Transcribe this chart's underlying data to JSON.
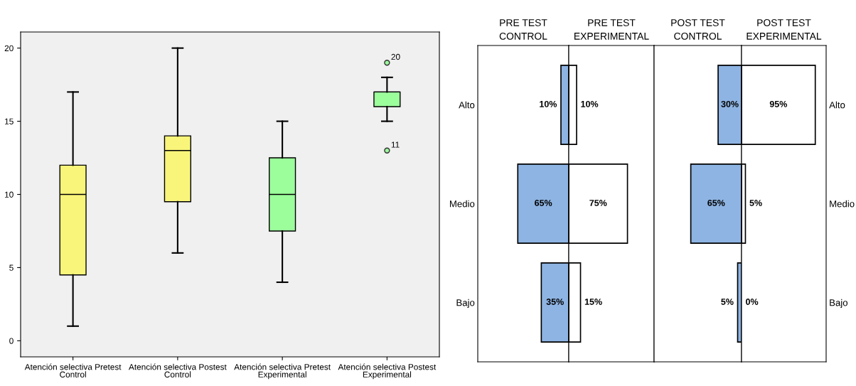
{
  "chart_data": [
    {
      "type": "box",
      "categories": [
        "Atención selectiva Pretest\nControl",
        "Atención selectiva Postest\nControl",
        "Atención selectiva Pretest\nExperimental",
        "Atención selectiva Postest\nExperimental"
      ],
      "colors": [
        "#f9f57a",
        "#f9f57a",
        "#9bfe9b",
        "#9bfe9b"
      ],
      "boxes": [
        {
          "low": 1,
          "q1": 4.5,
          "median": 10,
          "q3": 12,
          "high": 17
        },
        {
          "low": 6,
          "q1": 9.5,
          "median": 13,
          "q3": 14,
          "high": 20
        },
        {
          "low": 4,
          "q1": 7.5,
          "median": 10,
          "q3": 12.5,
          "high": 15
        },
        {
          "low": 15,
          "q1": 16,
          "median": 17,
          "q3": 17,
          "high": 18,
          "outliers": [
            19,
            13
          ]
        }
      ],
      "ylim": [
        -1.1,
        21.1
      ],
      "yticks": [
        0,
        5,
        10,
        15,
        20
      ],
      "annotations": [
        "20",
        "11"
      ]
    },
    {
      "type": "bar",
      "orientation": "horizontal",
      "title": "PRE TEST\nCONTROL",
      "categories": [
        "Alto",
        "Medio",
        "Bajo"
      ],
      "xlim": [
        116,
        0
      ],
      "tick_labels": "y",
      "color": "#8eb4e3",
      "values": [
        10,
        65,
        35
      ],
      "value_labels": [
        "10%",
        "65%",
        "35%"
      ]
    },
    {
      "type": "bar",
      "orientation": "horizontal",
      "title": "PRE TEST\nEXPERIMENTAL",
      "categories": [
        null,
        null,
        null
      ],
      "xlim": [
        0,
        109
      ],
      "color": "#ffffff",
      "values": [
        10,
        75,
        15
      ],
      "value_labels": [
        "10%",
        "75%",
        "15%"
      ]
    },
    {
      "type": "bar",
      "orientation": "horizontal",
      "title": "POST TEST\nCONTROL",
      "categories": [
        null,
        null,
        null
      ],
      "xlim": [
        112,
        0
      ],
      "color": "#8eb4e3",
      "values": [
        30,
        65,
        5
      ],
      "value_labels": [
        "30%",
        "65%",
        "5%"
      ]
    },
    {
      "type": "bar",
      "orientation": "horizontal",
      "title": "POST TEST\nEXPERIMENTAL",
      "categories": [
        "Alto",
        "Medio",
        "Bajo"
      ],
      "xlim": [
        0,
        109
      ],
      "tick_labels": "y",
      "color": "#ffffff",
      "values": [
        95,
        5,
        0
      ],
      "value_labels": [
        "95%",
        "5%",
        "0%"
      ]
    }
  ]
}
